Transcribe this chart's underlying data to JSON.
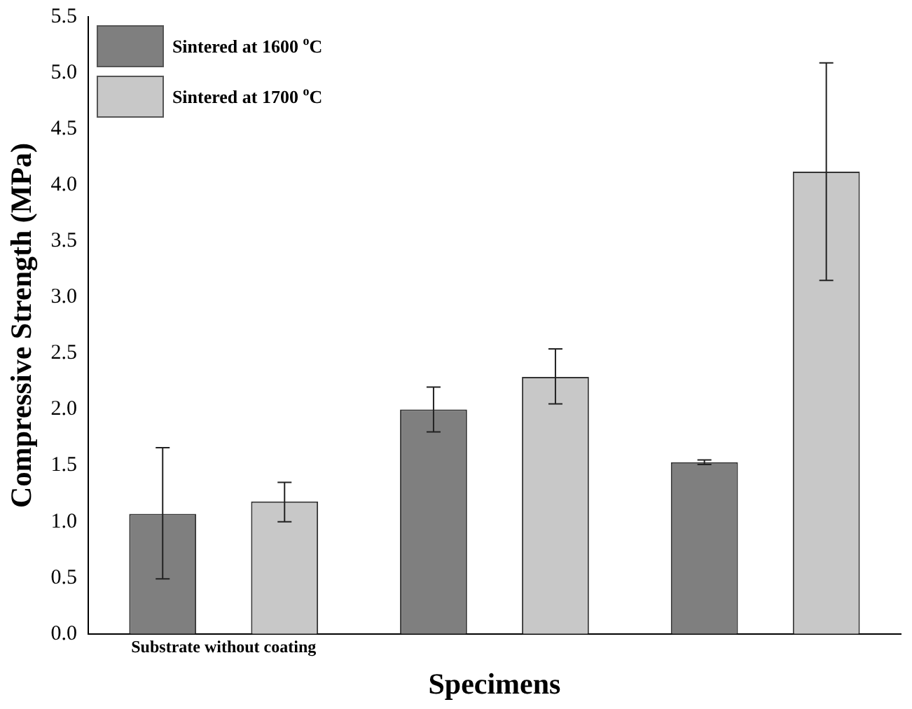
{
  "chart_data": {
    "type": "bar",
    "xlabel": "Specimens",
    "ylabel": "Compressive Strength (MPa)",
    "categories": [
      "Substrate without coating",
      null,
      null
    ],
    "series": [
      {
        "name": "Sintered at 1600 $^{o}$C",
        "color": "#7f7f7f",
        "values": [
          1.07,
          2.0,
          1.53
        ],
        "errors": [
          [
            0.49,
            1.66
          ],
          [
            1.8,
            2.2
          ],
          [
            1.51,
            1.55
          ]
        ]
      },
      {
        "name": "Sintered at 1700 $^{o}$C",
        "color": "#c8c8c8",
        "values": [
          1.18,
          2.29,
          4.12
        ],
        "errors": [
          [
            1.0,
            1.35
          ],
          [
            2.05,
            2.54
          ],
          [
            3.15,
            5.09
          ]
        ]
      }
    ],
    "ylim": [
      0,
      5.5
    ],
    "yticks": [
      {
        "value": 0,
        "label": "0.0"
      },
      0.5,
      {
        "value": 1,
        "label": "1.0"
      },
      1.5,
      {
        "value": 2,
        "label": "2.0"
      },
      2.5,
      {
        "value": 3,
        "label": "3.0"
      },
      3.5,
      {
        "value": 4,
        "label": "4.0"
      },
      4.5,
      {
        "value": 5,
        "label": "5.0"
      },
      5.5
    ],
    "grid": false,
    "legend": "top left"
  }
}
